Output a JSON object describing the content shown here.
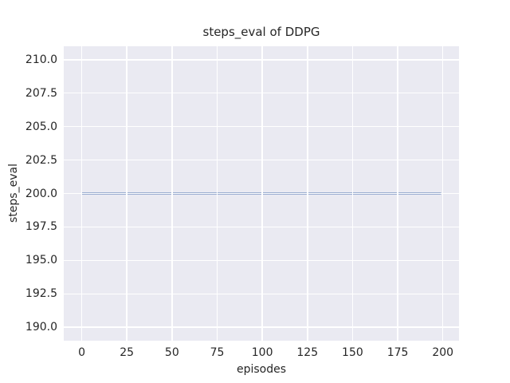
{
  "chart_data": {
    "type": "line",
    "title": "steps_eval of DDPG",
    "xlabel": "episodes",
    "ylabel": "steps_eval",
    "xlim": [
      -9.95,
      208.95
    ],
    "ylim": [
      189,
      211
    ],
    "xtick_values": [
      0,
      25,
      50,
      75,
      100,
      125,
      150,
      175,
      200
    ],
    "xtick_labels": [
      "0",
      "25",
      "50",
      "75",
      "100",
      "125",
      "150",
      "175",
      "200"
    ],
    "ytick_values": [
      190.0,
      192.5,
      195.0,
      197.5,
      200.0,
      202.5,
      205.0,
      207.5,
      210.0
    ],
    "ytick_labels": [
      "190.0",
      "192.5",
      "195.0",
      "197.5",
      "200.0",
      "202.5",
      "205.0",
      "207.5",
      "210.0"
    ],
    "grid": true,
    "legend": false,
    "colors": {
      "plot_background": "#eaeaf2",
      "grid_color": "#ffffff",
      "text_color": "#262626",
      "line_color": "#4c72b0"
    },
    "series": [
      {
        "name": "steps_eval",
        "color": "#4c72b0",
        "x": [
          0,
          199
        ],
        "y": [
          200,
          200
        ]
      }
    ]
  }
}
